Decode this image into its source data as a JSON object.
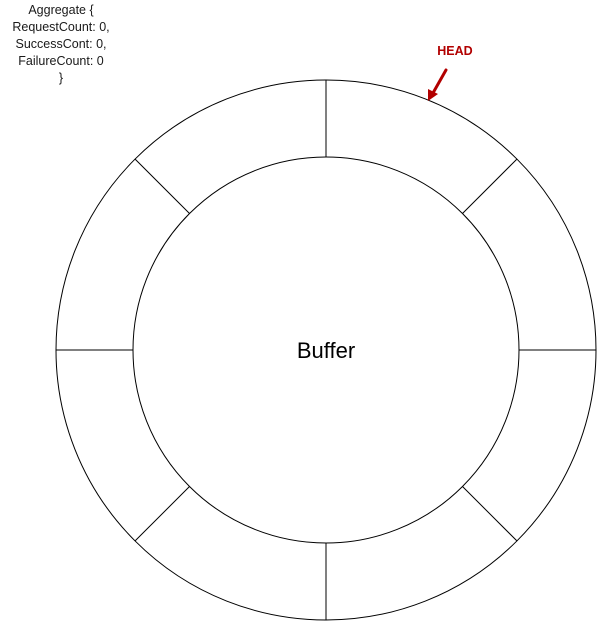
{
  "aggregate": {
    "lines": [
      "Aggregate {",
      "RequestCount: 0,",
      "SuccessCont: 0,",
      "FailureCount: 0",
      "}"
    ]
  },
  "buffer": {
    "label": "Buffer",
    "segment_count": 8
  },
  "head": {
    "label": "HEAD",
    "color": "#b20000"
  },
  "colors": {
    "stroke": "#000000",
    "background": "#ffffff"
  }
}
